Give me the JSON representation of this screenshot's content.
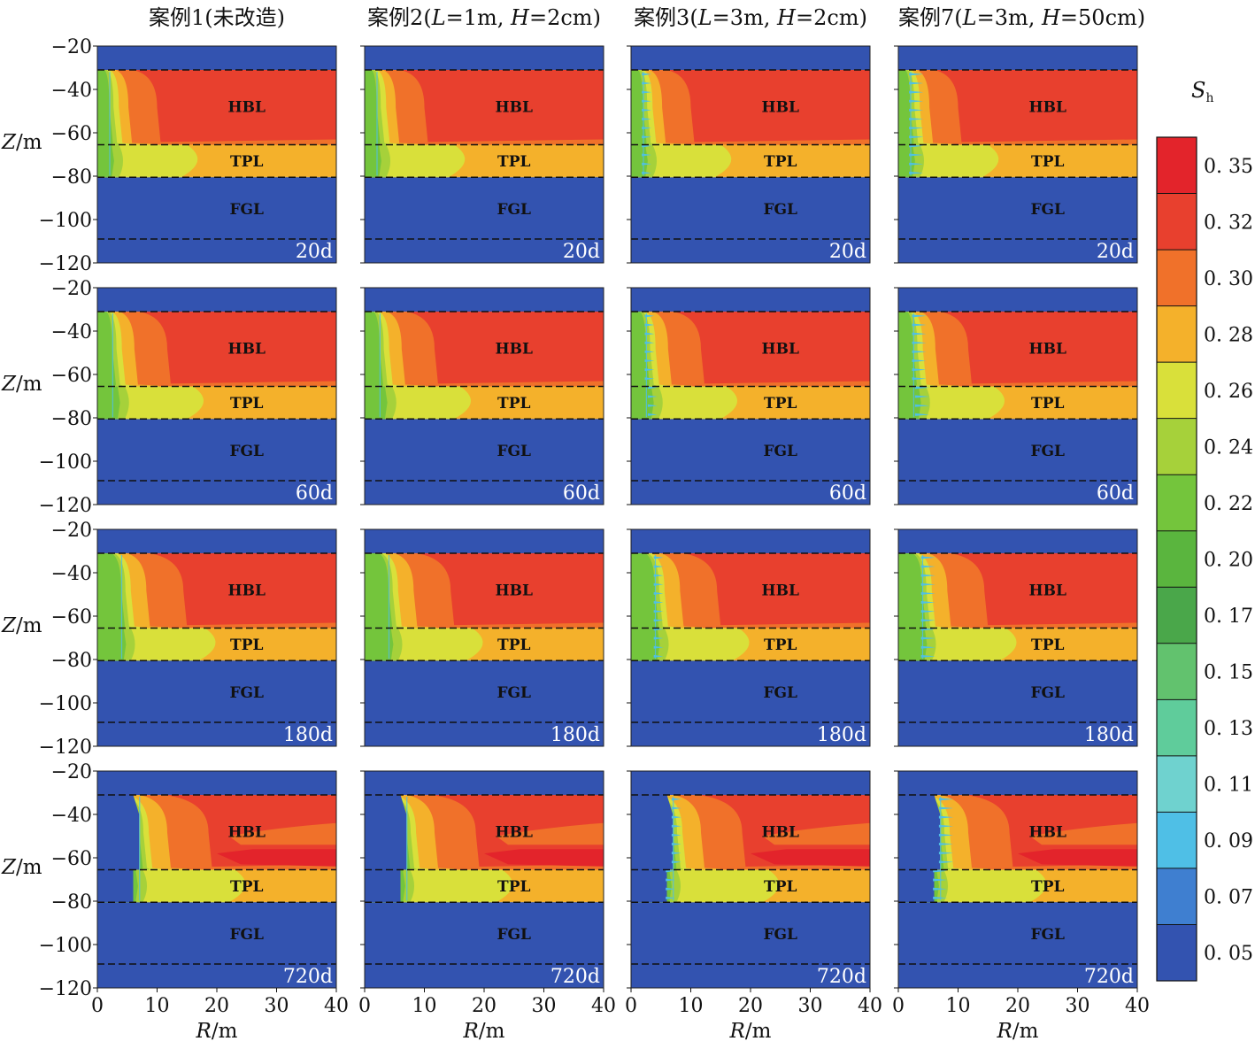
{
  "chart_data": {
    "type": "heatmap",
    "colorbar": {
      "label_main": "S",
      "label_sub": "h",
      "levels": [
        "0. 35",
        "0. 32",
        "0. 30",
        "0. 28",
        "0. 26",
        "0. 24",
        "0. 22",
        "0. 20",
        "0. 17",
        "0. 15",
        "0. 13",
        "0. 11",
        "0. 09",
        "0. 07",
        "0. 05"
      ],
      "colors": [
        "#e3242b",
        "#e8402e",
        "#f0712a",
        "#f4b12b",
        "#d9e03a",
        "#a6d13a",
        "#74c53c",
        "#5ab53e",
        "#4aa74a",
        "#62c26e",
        "#5fcc9b",
        "#6fd2cf",
        "#4fbfe6",
        "#3f7fd0",
        "#3353b0"
      ]
    },
    "columns": [
      {
        "title": "案例1(未改造)",
        "n_stripes": 0,
        "stripe_amp": 0
      },
      {
        "title_parts": {
          "pre": "案例2(",
          "L": "L",
          "L_val": "=1m, ",
          "H": "H",
          "H_val": "=2cm)"
        },
        "n_stripes": 0,
        "stripe_amp": 0
      },
      {
        "title_parts": {
          "pre": "案例3(",
          "L": "L",
          "L_val": "=3m, ",
          "H": "H",
          "H_val": "=2cm)"
        },
        "n_stripes": 12,
        "stripe_amp": 0.8
      },
      {
        "title_parts": {
          "pre": "案例7(",
          "L": "L",
          "L_val": "=3m, ",
          "H": "H",
          "H_val": "=50cm)"
        },
        "n_stripes": 12,
        "stripe_amp": 1.6
      }
    ],
    "rows": [
      {
        "time": "20d",
        "front_top": 2,
        "front_tpl": 2,
        "shelf": 17
      },
      {
        "time": "60d",
        "front_top": 2.5,
        "front_tpl": 3,
        "shelf": 18
      },
      {
        "time": "180d",
        "front_top": 4,
        "front_tpl": 4,
        "shelf": 20
      },
      {
        "time": "720d",
        "front_top": 7,
        "front_tpl": 6,
        "shelf": 25
      }
    ],
    "layers": {
      "hbl": "HBL",
      "tpl": "TPL",
      "fgl": "FGL"
    },
    "layer_bounds_z": {
      "hbl_top": -31,
      "hbl_tpl": -65.5,
      "tpl_fgl": -80.5,
      "fgl_bottom": -109
    },
    "x_axis": {
      "label": "R",
      "unit": "/m",
      "range": [
        0,
        40
      ],
      "ticks": [
        "0",
        "10",
        "20",
        "30",
        "40"
      ]
    },
    "y_axis": {
      "label": "Z",
      "unit": "/m",
      "range": [
        -120,
        -20
      ],
      "ticks": [
        "−20",
        "−40",
        "−60",
        "−80",
        "−100",
        "−120"
      ]
    }
  }
}
